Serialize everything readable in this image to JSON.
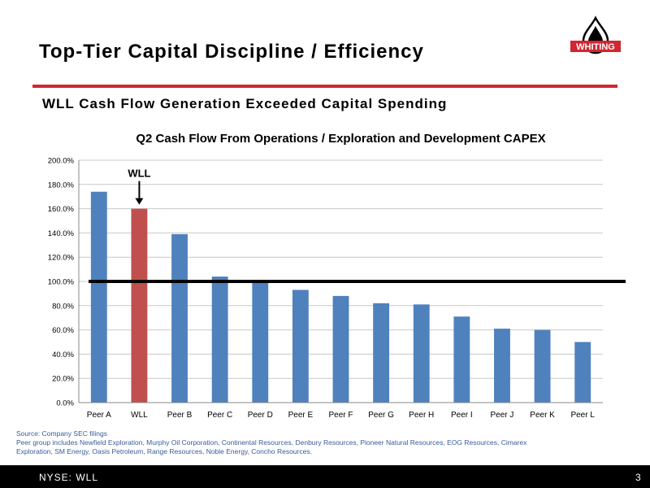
{
  "slide": {
    "title": "Top-Tier Capital Discipline /  Efficiency",
    "subtitle": "WLL Cash Flow Generation Exceeded Capital Spending",
    "logo_text": "WHITING",
    "colors": {
      "accent_red": "#d22630",
      "bar_blue": "#4f81bd",
      "bar_highlight": "#c0504d"
    }
  },
  "chart_data": {
    "type": "bar",
    "title": "Q2 Cash Flow From Operations / Exploration and Development CAPEX",
    "xlabel": "",
    "ylabel": "",
    "categories": [
      "Peer A",
      "WLL",
      "Peer B",
      "Peer C",
      "Peer D",
      "Peer E",
      "Peer F",
      "Peer G",
      "Peer H",
      "Peer I",
      "Peer J",
      "Peer K",
      "Peer L"
    ],
    "values": [
      174,
      160,
      139,
      104,
      100,
      93,
      88,
      82,
      81,
      71,
      61,
      60,
      50
    ],
    "ylim": [
      0,
      200
    ],
    "yticks": [
      "0.0%",
      "20.0%",
      "40.0%",
      "60.0%",
      "80.0%",
      "100.0%",
      "120.0%",
      "140.0%",
      "160.0%",
      "180.0%",
      "200.0%"
    ],
    "highlight_category": "WLL",
    "annotation": "WLL",
    "reference_line": 100,
    "grid": true
  },
  "notes": {
    "source": "Source: Company SEC filings",
    "peer_line1": "Peer group includes Newfield Exploration, Murphy Oil Corporation,  Continental Resources, Denbury Resources, Pioneer Natural Resources, EOG Resources, Cimarex",
    "peer_line2": "Exploration, SM Energy, Oasis Petroleum, Range Resources, Noble Energy, Concho Resources."
  },
  "footer": {
    "ticker": "NYSE:  WLL",
    "page_number": "3"
  }
}
